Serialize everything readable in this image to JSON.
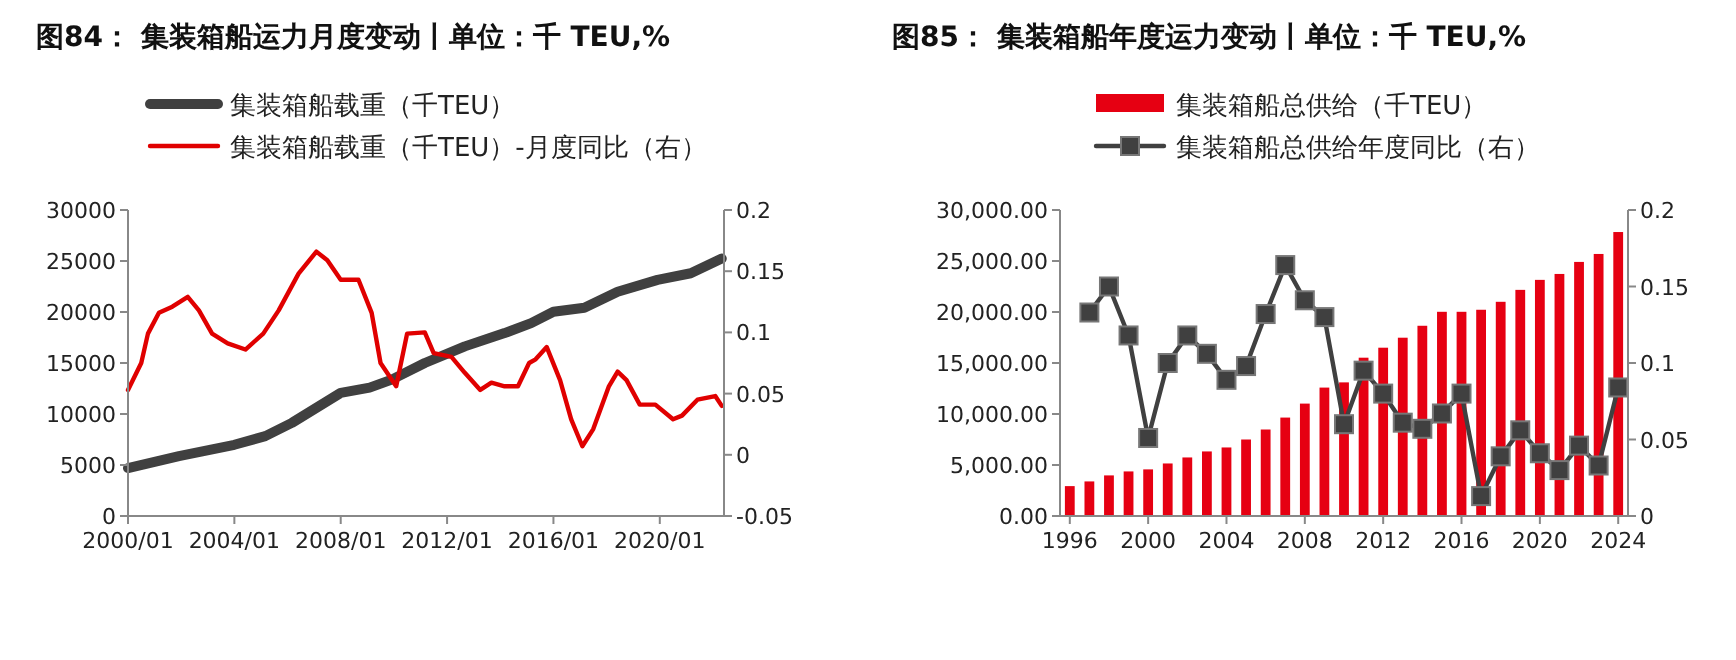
{
  "chart_data": [
    {
      "type": "line",
      "title": "图84： 集装箱船运力月度变动丨单位：千 TEU,%",
      "legend": "top",
      "grid": false,
      "marker": "none",
      "xlim": [
        "2000-01",
        "2022-06"
      ],
      "xticks": [
        {
          "value": "2000-01",
          "label": "2000/01"
        },
        {
          "value": "2004-01",
          "label": "2004/01"
        },
        {
          "value": "2008-01",
          "label": "2008/01"
        },
        {
          "value": "2012-01",
          "label": "2012/01"
        },
        {
          "value": "2016-01",
          "label": "2016/01"
        },
        {
          "value": "2020-01",
          "label": "2020/01"
        }
      ],
      "ylim": [
        0,
        30000
      ],
      "yticks": [
        0,
        5000,
        10000,
        15000,
        20000,
        25000,
        30000
      ],
      "y2lim": [
        -0.05,
        0.2
      ],
      "y2ticks": [
        -0.05,
        0,
        0.05,
        0.1,
        0.15,
        0.2
      ],
      "series": [
        {
          "name": "集装箱船载重（千TEU）",
          "color": "#404040",
          "x": [
            "2000-01",
            "2001-12",
            "2004-01",
            "2005-03",
            "2006-03",
            "2008-01",
            "2009-02",
            "2009-12",
            "2011-03",
            "2012-09",
            "2014-03",
            "2015-03",
            "2016-01",
            "2017-03",
            "2018-06",
            "2019-12",
            "2021-03",
            "2022-05"
          ],
          "values": [
            4700,
            5870,
            6980,
            7830,
            9130,
            12070,
            12590,
            13370,
            15000,
            16630,
            17930,
            18910,
            20020,
            20410,
            21980,
            23150,
            23800,
            25240
          ]
        },
        {
          "name": "集装箱船载重（千TEU）-月度同比（右）",
          "color": "#e00000",
          "axis": "y2",
          "x": [
            "2000-01",
            "2000-07",
            "2000-10",
            "2001-03",
            "2001-09",
            "2002-04",
            "2002-09",
            "2003-03",
            "2003-10",
            "2004-06",
            "2005-02",
            "2005-09",
            "2006-06",
            "2007-02",
            "2007-07",
            "2008-01",
            "2008-09",
            "2009-03",
            "2009-07",
            "2010-02",
            "2010-07",
            "2011-03",
            "2011-07",
            "2012-03",
            "2012-09",
            "2013-04",
            "2013-09",
            "2014-03",
            "2014-09",
            "2015-02",
            "2015-05",
            "2015-10",
            "2016-04",
            "2016-09",
            "2017-02",
            "2017-07",
            "2018-02",
            "2018-06",
            "2018-10",
            "2019-04",
            "2019-11",
            "2020-07",
            "2020-11",
            "2021-06",
            "2022-02",
            "2022-05"
          ],
          "values": [
            0.053,
            0.075,
            0.099,
            0.116,
            0.121,
            0.129,
            0.118,
            0.099,
            0.091,
            0.086,
            0.099,
            0.118,
            0.148,
            0.166,
            0.159,
            0.143,
            0.143,
            0.116,
            0.075,
            0.056,
            0.099,
            0.1,
            0.083,
            0.08,
            0.067,
            0.053,
            0.059,
            0.056,
            0.056,
            0.075,
            0.078,
            0.088,
            0.061,
            0.029,
            0.007,
            0.021,
            0.056,
            0.068,
            0.061,
            0.041,
            0.041,
            0.029,
            0.032,
            0.045,
            0.048,
            0.04
          ]
        }
      ]
    },
    {
      "type": "bar",
      "title": "图85： 集装箱船年度运力变动丨单位：千 TEU,%",
      "legend": "top",
      "grid": false,
      "categories": [
        "1996",
        null,
        null,
        null,
        "2000",
        null,
        null,
        null,
        "2004",
        null,
        null,
        null,
        "2008",
        null,
        null,
        null,
        "2012",
        null,
        null,
        null,
        "2016",
        null,
        null,
        null,
        "2020",
        null,
        null,
        null,
        "2024"
      ],
      "ylim": [
        0,
        30000
      ],
      "yticks": [
        {
          "value": 0,
          "label": "0.00"
        },
        {
          "value": 5000,
          "label": "5,000.00"
        },
        {
          "value": 10000,
          "label": "10,000.00"
        },
        {
          "value": 15000,
          "label": "15,000.00"
        },
        {
          "value": 20000,
          "label": "20,000.00"
        },
        {
          "value": 25000,
          "label": "25,000.00"
        },
        {
          "value": 30000,
          "label": "30,000.00"
        }
      ],
      "y2lim": [
        0,
        0.2
      ],
      "y2ticks": [
        0,
        0.05,
        0.1,
        0.15,
        0.2
      ],
      "series": [
        {
          "name": "集装箱船总供给（千TEU）",
          "color": "#e60012",
          "values": [
            2930,
            3390,
            3980,
            4370,
            4570,
            5150,
            5740,
            6330,
            6720,
            7500,
            8480,
            9650,
            11020,
            12590,
            13100,
            15520,
            16500,
            17480,
            18650,
            20020,
            20020,
            20220,
            21000,
            22170,
            23150,
            23730,
            24910,
            25690,
            27840
          ]
        },
        {
          "name": "集装箱船总供给年度同比（右）",
          "type": "line",
          "marker": "square",
          "color": "#404040",
          "axis": "y2",
          "values": [
            null,
            0.133,
            0.15,
            0.118,
            0.051,
            0.1,
            0.118,
            0.106,
            0.089,
            0.098,
            0.132,
            0.164,
            0.141,
            0.13,
            0.06,
            0.095,
            0.08,
            0.061,
            0.057,
            0.067,
            0.08,
            0.013,
            0.039,
            0.056,
            0.041,
            0.03,
            0.046,
            0.033,
            0.084
          ]
        }
      ]
    }
  ]
}
